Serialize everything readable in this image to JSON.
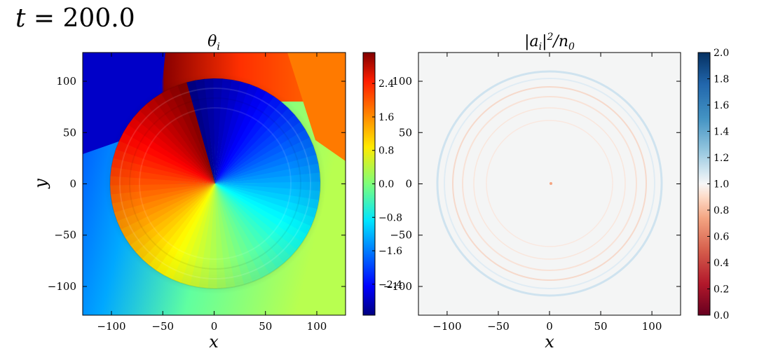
{
  "header": {
    "time_var": "t",
    "time_eq": " = ",
    "time_value": "200.0"
  },
  "chart_data": [
    {
      "type": "heatmap",
      "title": "θᵢ",
      "title_main": "θ",
      "title_sub": "i",
      "xlabel": "x",
      "ylabel": "y",
      "xlim": [
        -128,
        128
      ],
      "ylim": [
        -128,
        128
      ],
      "xticks": [
        -100,
        -50,
        0,
        50,
        100
      ],
      "yticks": [
        -100,
        -50,
        0,
        50,
        100
      ],
      "colormap": "jet",
      "colorbar": {
        "min": -3.14,
        "max": 3.14,
        "ticks": [
          -2.4,
          -1.6,
          -0.8,
          0.0,
          0.8,
          1.6,
          2.4
        ],
        "tick_labels": [
          "−2.4",
          "−1.6",
          "−0.8",
          "0.0",
          "0.8",
          "1.6",
          "2.4"
        ]
      },
      "features": {
        "vortex_center": [
          0,
          0
        ],
        "ring_radius_approx": 105,
        "branch_cut_direction": "upward, x≈-50",
        "far_field_gradient": "blue (left) to green/orange (right)"
      }
    },
    {
      "type": "heatmap",
      "title": "|aᵢ|²/n₀",
      "title_parts": [
        "|a",
        "i",
        "|",
        "2",
        "/n",
        "0"
      ],
      "xlabel": "x",
      "ylabel": "",
      "xlim": [
        -128,
        128
      ],
      "ylim": [
        -128,
        128
      ],
      "xticks": [
        -100,
        -50,
        0,
        50,
        100
      ],
      "yticks": [
        -100,
        -50,
        0,
        50,
        100
      ],
      "colormap": "RdBu",
      "colorbar": {
        "min": 0.0,
        "max": 2.0,
        "ticks": [
          0.0,
          0.2,
          0.4,
          0.6,
          0.8,
          1.0,
          1.2,
          1.4,
          1.6,
          1.8,
          2.0
        ],
        "tick_labels": [
          "0.0",
          "0.2",
          "0.4",
          "0.6",
          "0.8",
          "1.0",
          "1.2",
          "1.4",
          "1.6",
          "1.8",
          "2.0"
        ]
      },
      "features": {
        "background_value": 1.0,
        "ring_radius_approx": 110,
        "small_density_dip_at": [
          0,
          0
        ]
      }
    }
  ],
  "colors": {
    "axis": "#000000",
    "density_bg": "#f4f5f5",
    "ring_blue": "#cfe3ef",
    "ring_red": "#f6d4c4"
  }
}
